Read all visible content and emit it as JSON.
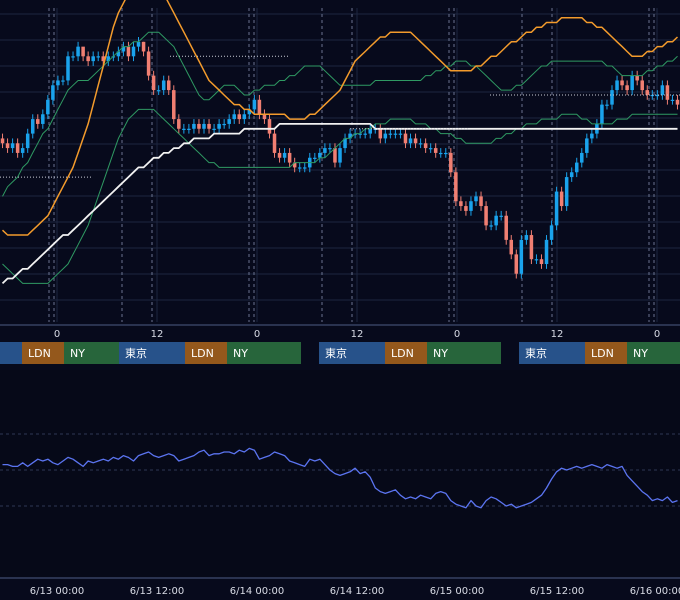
{
  "colors": {
    "background": "#070a1c",
    "grid": "#1d2640",
    "session_line": "#6b7390",
    "up_candle": "#1aa3ec",
    "down_candle": "#f07f72",
    "bb_band": "#2f9a63",
    "ma_mid": "#f39b2c",
    "ma_long": "#f2f2f2",
    "oscillator": "#5b74f0",
    "tokyo": "#27528a",
    "london": "#94581c",
    "newyork": "#27653b"
  },
  "chart_data": [
    {
      "type": "candlestick",
      "ma_mid_values": [
        169,
        168,
        168,
        168,
        168,
        168,
        169,
        170,
        171,
        172,
        174,
        176,
        178,
        180,
        182,
        185,
        188,
        191,
        195,
        199,
        203,
        207,
        211,
        214,
        216,
        218,
        219,
        220,
        221,
        222,
        222,
        220,
        218,
        216,
        214,
        212,
        210,
        208,
        206,
        204,
        202,
        200,
        199,
        198,
        197,
        196,
        195,
        195,
        194,
        194,
        193,
        193,
        193,
        193,
        193,
        193,
        193,
        192,
        192,
        192,
        192,
        193,
        193,
        194,
        195,
        196,
        197,
        198,
        200,
        202,
        204,
        205,
        206,
        207,
        208,
        209,
        209,
        210,
        210,
        210,
        210,
        210,
        209,
        208,
        207,
        206,
        205,
        204,
        203,
        202,
        202,
        202,
        202,
        202,
        203,
        203,
        204,
        205,
        205,
        206,
        207,
        208,
        208,
        209,
        210,
        210,
        211,
        211,
        212,
        212,
        212,
        213,
        213,
        213,
        213,
        213,
        212,
        212,
        211,
        211,
        210,
        209,
        208,
        207,
        206,
        205,
        205,
        205,
        206,
        206,
        207,
        207,
        208,
        208,
        209
      ],
      "ma_long_values": [
        158,
        159,
        159,
        160,
        161,
        161,
        162,
        163,
        164,
        165,
        166,
        167,
        168,
        168,
        169,
        170,
        171,
        172,
        173,
        174,
        175,
        176,
        177,
        178,
        179,
        180,
        181,
        182,
        182,
        183,
        184,
        184,
        185,
        185,
        186,
        186,
        187,
        187,
        188,
        188,
        188,
        188,
        189,
        189,
        189,
        189,
        189,
        189,
        190,
        190,
        190,
        190,
        190,
        190,
        190,
        191,
        191,
        191,
        191,
        191,
        191,
        191,
        191,
        191,
        191,
        191,
        191,
        191,
        191,
        191,
        191,
        191,
        191,
        191,
        190,
        190,
        190,
        190,
        190,
        190,
        190,
        190,
        190,
        190,
        190,
        190,
        190,
        190,
        190,
        190,
        190,
        190,
        190,
        190,
        190,
        190,
        190,
        190,
        190,
        190,
        190,
        190,
        190,
        190,
        190,
        190,
        190,
        190,
        190,
        190,
        190,
        190,
        190,
        190,
        190,
        190,
        190,
        190,
        190,
        190,
        190,
        190,
        190,
        190,
        190,
        190,
        190,
        190,
        190,
        190,
        190,
        190,
        190,
        190,
        190
      ],
      "bb_upper_values": [
        176,
        178,
        179,
        180,
        182,
        183,
        185,
        187,
        189,
        190,
        192,
        194,
        196,
        198,
        199,
        200,
        200,
        200,
        201,
        202,
        203,
        204,
        205,
        206,
        207,
        207,
        208,
        208,
        209,
        210,
        210,
        210,
        209,
        208,
        207,
        205,
        203,
        201,
        199,
        197,
        196,
        196,
        197,
        198,
        199,
        199,
        199,
        198,
        197,
        197,
        198,
        198,
        199,
        199,
        199,
        200,
        200,
        201,
        201,
        202,
        203,
        203,
        203,
        203,
        202,
        201,
        200,
        199,
        199,
        199,
        199,
        199,
        199,
        199,
        200,
        200,
        200,
        200,
        200,
        200,
        200,
        200,
        200,
        200,
        201,
        201,
        202,
        202,
        203,
        203,
        204,
        204,
        204,
        203,
        203,
        202,
        201,
        200,
        199,
        198,
        198,
        198,
        199,
        199,
        200,
        201,
        202,
        203,
        203,
        204,
        204,
        204,
        204,
        204,
        204,
        204,
        204,
        204,
        204,
        204,
        203,
        203,
        202,
        201,
        201,
        201,
        201,
        201,
        202,
        202,
        203,
        203,
        204,
        204,
        205
      ],
      "bb_lower_values": [
        162,
        161,
        160,
        159,
        158,
        158,
        158,
        158,
        158,
        158,
        159,
        160,
        161,
        162,
        164,
        166,
        168,
        170,
        173,
        176,
        179,
        182,
        185,
        188,
        190,
        192,
        193,
        194,
        194,
        194,
        194,
        193,
        192,
        191,
        190,
        189,
        188,
        187,
        186,
        185,
        184,
        183,
        183,
        182,
        182,
        182,
        182,
        182,
        182,
        182,
        182,
        182,
        182,
        182,
        182,
        182,
        182,
        182,
        183,
        183,
        183,
        183,
        183,
        184,
        184,
        185,
        186,
        187,
        188,
        188,
        189,
        189,
        190,
        190,
        191,
        191,
        191,
        192,
        192,
        192,
        192,
        192,
        191,
        191,
        191,
        190,
        190,
        189,
        189,
        189,
        188,
        188,
        187,
        187,
        187,
        187,
        187,
        187,
        188,
        188,
        189,
        189,
        190,
        190,
        191,
        191,
        191,
        192,
        192,
        192,
        192,
        193,
        193,
        193,
        193,
        192,
        192,
        191,
        191,
        191,
        191,
        191,
        192,
        192,
        192,
        193,
        193,
        193,
        193,
        193,
        193,
        193,
        193,
        193,
        193
      ],
      "opens": [
        188,
        187,
        186,
        187,
        185,
        186,
        189,
        192,
        191,
        193,
        196,
        199,
        200,
        200,
        205,
        205,
        207,
        205,
        204,
        205,
        205,
        204,
        205,
        205,
        206,
        207,
        205,
        207,
        208,
        206,
        201,
        198,
        198,
        200,
        198,
        192,
        190,
        190,
        190,
        191,
        190,
        191,
        190,
        190,
        191,
        191,
        192,
        193,
        192,
        193,
        194,
        196,
        193,
        192,
        189,
        185,
        184,
        185,
        183,
        182,
        182,
        182,
        184,
        184,
        185,
        186,
        186,
        183,
        186,
        188,
        189,
        189,
        189,
        189,
        190,
        190,
        188,
        189,
        189,
        189,
        189,
        187,
        188,
        187,
        187,
        186,
        186,
        185,
        185,
        185,
        181,
        175,
        174,
        173,
        175,
        176,
        174,
        170,
        170,
        172,
        172,
        167,
        164,
        160,
        167,
        168,
        163,
        163,
        162,
        167,
        170,
        177,
        174,
        180,
        181,
        183,
        185,
        188,
        189,
        191,
        195,
        195,
        198,
        200,
        199,
        198,
        201,
        200,
        198,
        197,
        197,
        197,
        199,
        196,
        196
      ],
      "closes": [
        187,
        186,
        187,
        185,
        186,
        189,
        192,
        191,
        193,
        196,
        199,
        200,
        200,
        205,
        205,
        207,
        205,
        204,
        205,
        205,
        204,
        205,
        205,
        206,
        207,
        205,
        207,
        208,
        206,
        201,
        198,
        198,
        200,
        198,
        192,
        190,
        190,
        190,
        191,
        190,
        191,
        190,
        190,
        191,
        191,
        192,
        193,
        192,
        193,
        194,
        196,
        193,
        192,
        189,
        185,
        184,
        185,
        183,
        182,
        182,
        182,
        184,
        184,
        185,
        186,
        186,
        183,
        186,
        188,
        189,
        189,
        189,
        189,
        190,
        190,
        188,
        189,
        189,
        189,
        189,
        187,
        188,
        187,
        187,
        186,
        186,
        185,
        185,
        185,
        181,
        175,
        174,
        173,
        175,
        176,
        174,
        170,
        170,
        172,
        172,
        167,
        164,
        160,
        167,
        168,
        163,
        163,
        162,
        167,
        170,
        177,
        174,
        180,
        181,
        183,
        185,
        188,
        189,
        191,
        195,
        195,
        198,
        200,
        199,
        198,
        201,
        200,
        198,
        197,
        197,
        197,
        199,
        196,
        196,
        195
      ],
      "highs": [
        189,
        188,
        188,
        188,
        187,
        190,
        193,
        193,
        194,
        197,
        200,
        201,
        201,
        206,
        206,
        208,
        206,
        206,
        206,
        206,
        206,
        206,
        206,
        207,
        208,
        208,
        208,
        209,
        208,
        207,
        202,
        199,
        201,
        201,
        199,
        193,
        191,
        191,
        192,
        192,
        192,
        192,
        191,
        192,
        192,
        193,
        194,
        194,
        194,
        195,
        197,
        197,
        194,
        193,
        190,
        186,
        186,
        186,
        184,
        183,
        183,
        185,
        185,
        186,
        187,
        187,
        187,
        187,
        189,
        190,
        190,
        190,
        190,
        191,
        191,
        191,
        190,
        190,
        190,
        190,
        190,
        189,
        189,
        188,
        188,
        187,
        187,
        186,
        186,
        186,
        182,
        176,
        175,
        176,
        177,
        177,
        175,
        171,
        173,
        173,
        173,
        168,
        165,
        168,
        169,
        169,
        164,
        164,
        168,
        171,
        178,
        178,
        181,
        182,
        184,
        186,
        189,
        190,
        192,
        196,
        196,
        199,
        201,
        201,
        200,
        202,
        202,
        201,
        199,
        198,
        198,
        200,
        200,
        197,
        197
      ],
      "lows": [
        186,
        185,
        185,
        184,
        184,
        185,
        188,
        190,
        190,
        192,
        195,
        198,
        199,
        199,
        204,
        204,
        204,
        203,
        203,
        204,
        203,
        203,
        204,
        204,
        205,
        204,
        204,
        206,
        205,
        200,
        197,
        197,
        197,
        197,
        191,
        189,
        189,
        189,
        189,
        189,
        189,
        189,
        189,
        189,
        190,
        190,
        191,
        191,
        191,
        192,
        193,
        192,
        191,
        188,
        184,
        183,
        183,
        182,
        181,
        181,
        181,
        181,
        183,
        183,
        184,
        185,
        182,
        182,
        185,
        187,
        188,
        188,
        188,
        188,
        189,
        187,
        187,
        188,
        188,
        188,
        186,
        186,
        186,
        186,
        185,
        185,
        184,
        184,
        184,
        180,
        174,
        173,
        172,
        172,
        174,
        173,
        169,
        169,
        169,
        171,
        166,
        163,
        159,
        159,
        166,
        162,
        162,
        161,
        161,
        166,
        169,
        173,
        173,
        179,
        180,
        182,
        184,
        187,
        188,
        190,
        194,
        194,
        197,
        198,
        197,
        197,
        199,
        197,
        196,
        196,
        196,
        196,
        195,
        195,
        194
      ],
      "ylim": [
        150,
        215
      ]
    },
    {
      "type": "line",
      "values": [
        53,
        53,
        52,
        52,
        54,
        52,
        54,
        56,
        55,
        56,
        54,
        53,
        55,
        57,
        56,
        54,
        52,
        55,
        54,
        55,
        56,
        55,
        57,
        56,
        58,
        57,
        55,
        58,
        59,
        60,
        58,
        57,
        58,
        59,
        58,
        55,
        56,
        57,
        58,
        60,
        61,
        58,
        59,
        59,
        60,
        60,
        59,
        61,
        60,
        62,
        61,
        56,
        57,
        58,
        60,
        59,
        58,
        55,
        54,
        53,
        52,
        56,
        55,
        56,
        53,
        50,
        48,
        47,
        48,
        49,
        51,
        48,
        49,
        46,
        40,
        38,
        37,
        38,
        39,
        36,
        34,
        35,
        34,
        36,
        35,
        34,
        37,
        38,
        37,
        33,
        31,
        30,
        29,
        33,
        30,
        29,
        33,
        35,
        34,
        32,
        30,
        31,
        29,
        30,
        31,
        32,
        34,
        36,
        40,
        45,
        49,
        51,
        50,
        51,
        52,
        51,
        52,
        53,
        52,
        51,
        53,
        52,
        51,
        52,
        47,
        44,
        41,
        38,
        36,
        33,
        34,
        33,
        35,
        32,
        33
      ],
      "ylim": [
        0,
        100
      ]
    }
  ],
  "x_axis": {
    "hour_ticks": [
      "0",
      "12",
      "0",
      "12",
      "0",
      "12",
      "0"
    ],
    "date_ticks": [
      "6/13 00:00",
      "6/13 12:00",
      "6/14 00:00",
      "6/14 12:00",
      "6/15 00:00",
      "6/15 12:00",
      "6/16 00:00"
    ]
  },
  "sessions": {
    "tokyo": "東京",
    "london": "LDN",
    "newyork": "NY"
  }
}
